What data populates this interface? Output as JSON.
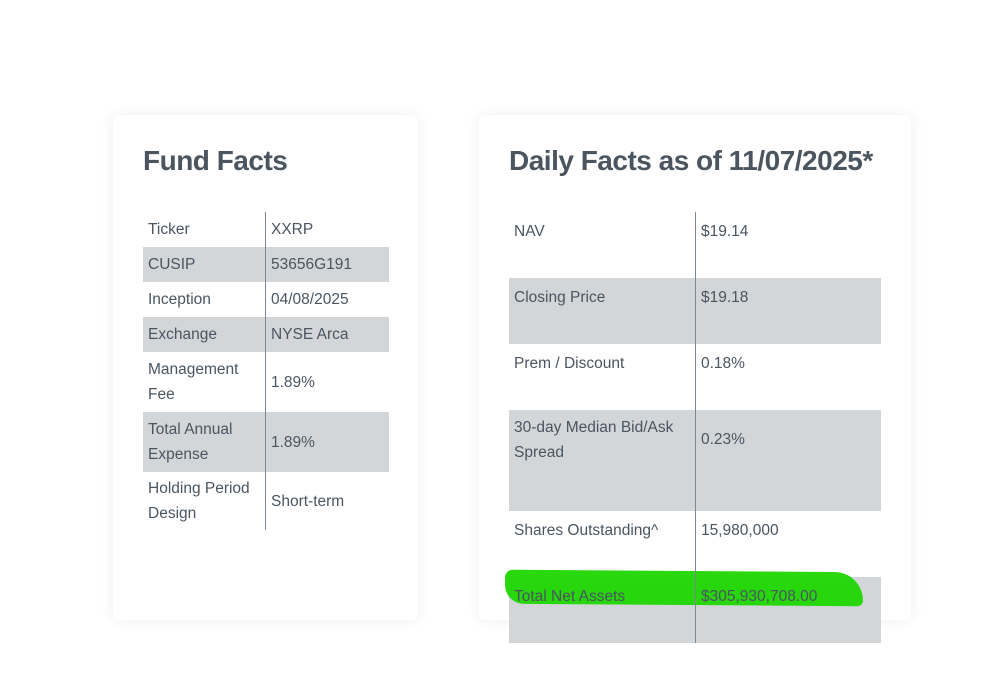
{
  "fund_facts": {
    "title": "Fund Facts",
    "rows": [
      {
        "label": "Ticker",
        "value": "XXRP"
      },
      {
        "label": "CUSIP",
        "value": "53656G191"
      },
      {
        "label": "Inception",
        "value": "04/08/2025"
      },
      {
        "label": "Exchange",
        "value": "NYSE Arca"
      },
      {
        "label": "Management Fee",
        "value": "1.89%"
      },
      {
        "label": "Total Annual Expense",
        "value": "1.89%"
      },
      {
        "label": "Holding Period Design",
        "value": "Short-term"
      }
    ]
  },
  "daily_facts": {
    "title": "Daily Facts as of 11/07/2025*",
    "rows": [
      {
        "label": "NAV",
        "value": "$19.14"
      },
      {
        "label": "Closing Price",
        "value": "$19.18"
      },
      {
        "label": "Prem / Discount",
        "value": "0.18%"
      },
      {
        "label": "30-day Median Bid/Ask Spread",
        "value": "0.23%"
      },
      {
        "label": "Shares Outstanding^",
        "value": "15,980,000"
      },
      {
        "label": "Total Net Assets",
        "value": "$305,930,708.00"
      }
    ],
    "highlight_color": "#1ed600"
  },
  "colors": {
    "text": "#4a5560",
    "shaded_row": "#d3d6d9",
    "divider": "#7d8790"
  }
}
